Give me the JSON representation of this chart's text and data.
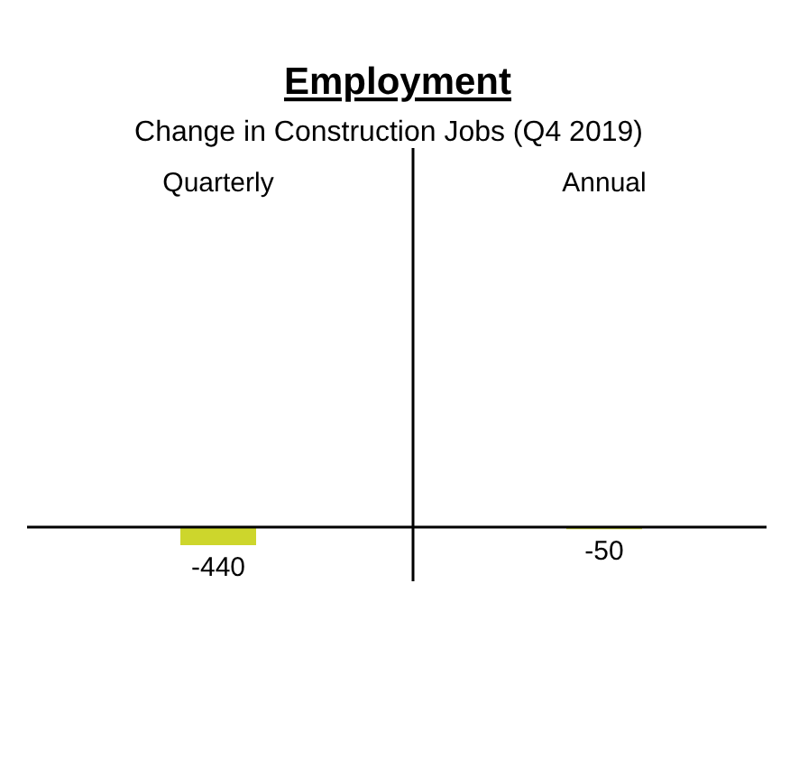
{
  "chart_data": {
    "type": "bar",
    "title": "Employment",
    "subtitle": "Change in Construction Jobs (Q4 2019)",
    "categories": [
      "Quarterly",
      "Annual"
    ],
    "values": [
      -440,
      -50
    ],
    "color": "#cdd62c",
    "data_labels": true
  }
}
